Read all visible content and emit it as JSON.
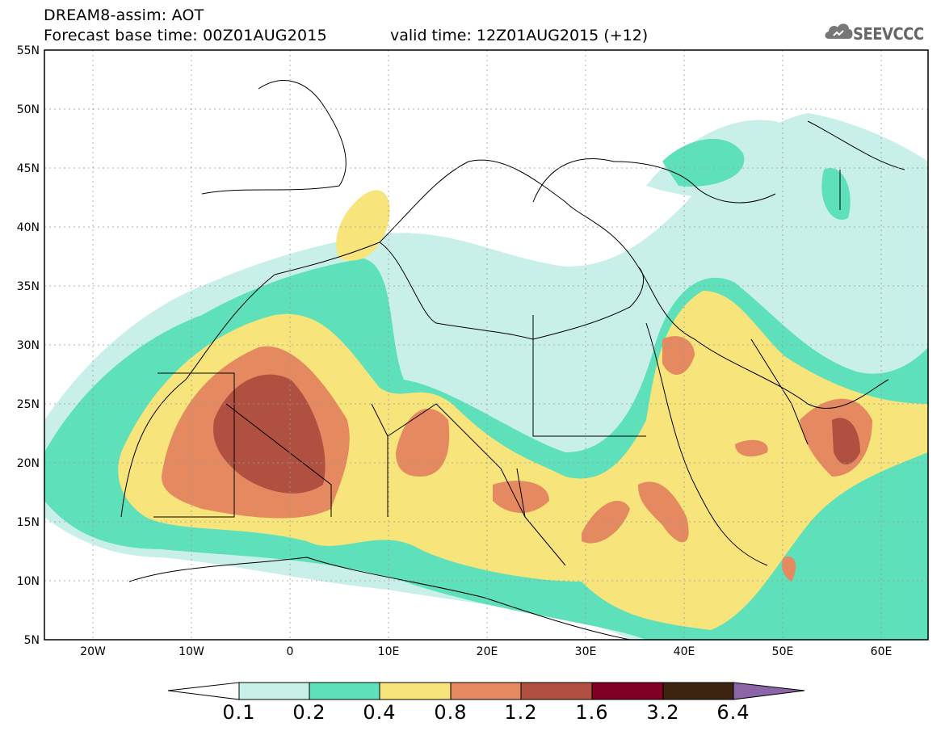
{
  "header": {
    "line1": "DREAM8-assim: AOT",
    "line2": "Forecast base time: 00Z01AUG2015",
    "valid": "valid time: 12Z01AUG2015 (+12)"
  },
  "logo": {
    "text": "SEEVCCC",
    "icon": "cloud-icon"
  },
  "map": {
    "lat_labels": [
      "55N",
      "50N",
      "45N",
      "40N",
      "35N",
      "30N",
      "25N",
      "20N",
      "15N",
      "10N",
      "5N"
    ],
    "lon_labels": [
      "20W",
      "10W",
      "0",
      "10E",
      "20E",
      "30E",
      "40E",
      "50E",
      "60E"
    ]
  },
  "colorbar": {
    "labels": [
      "0.1",
      "0.2",
      "0.4",
      "0.8",
      "1.2",
      "1.6",
      "3.2",
      "6.4"
    ],
    "colors": [
      "#c8f0e8",
      "#5ee0bb",
      "#f7e47a",
      "#e58a60",
      "#b05040",
      "#800024",
      "#3c2410",
      "#8c64a8"
    ]
  }
}
